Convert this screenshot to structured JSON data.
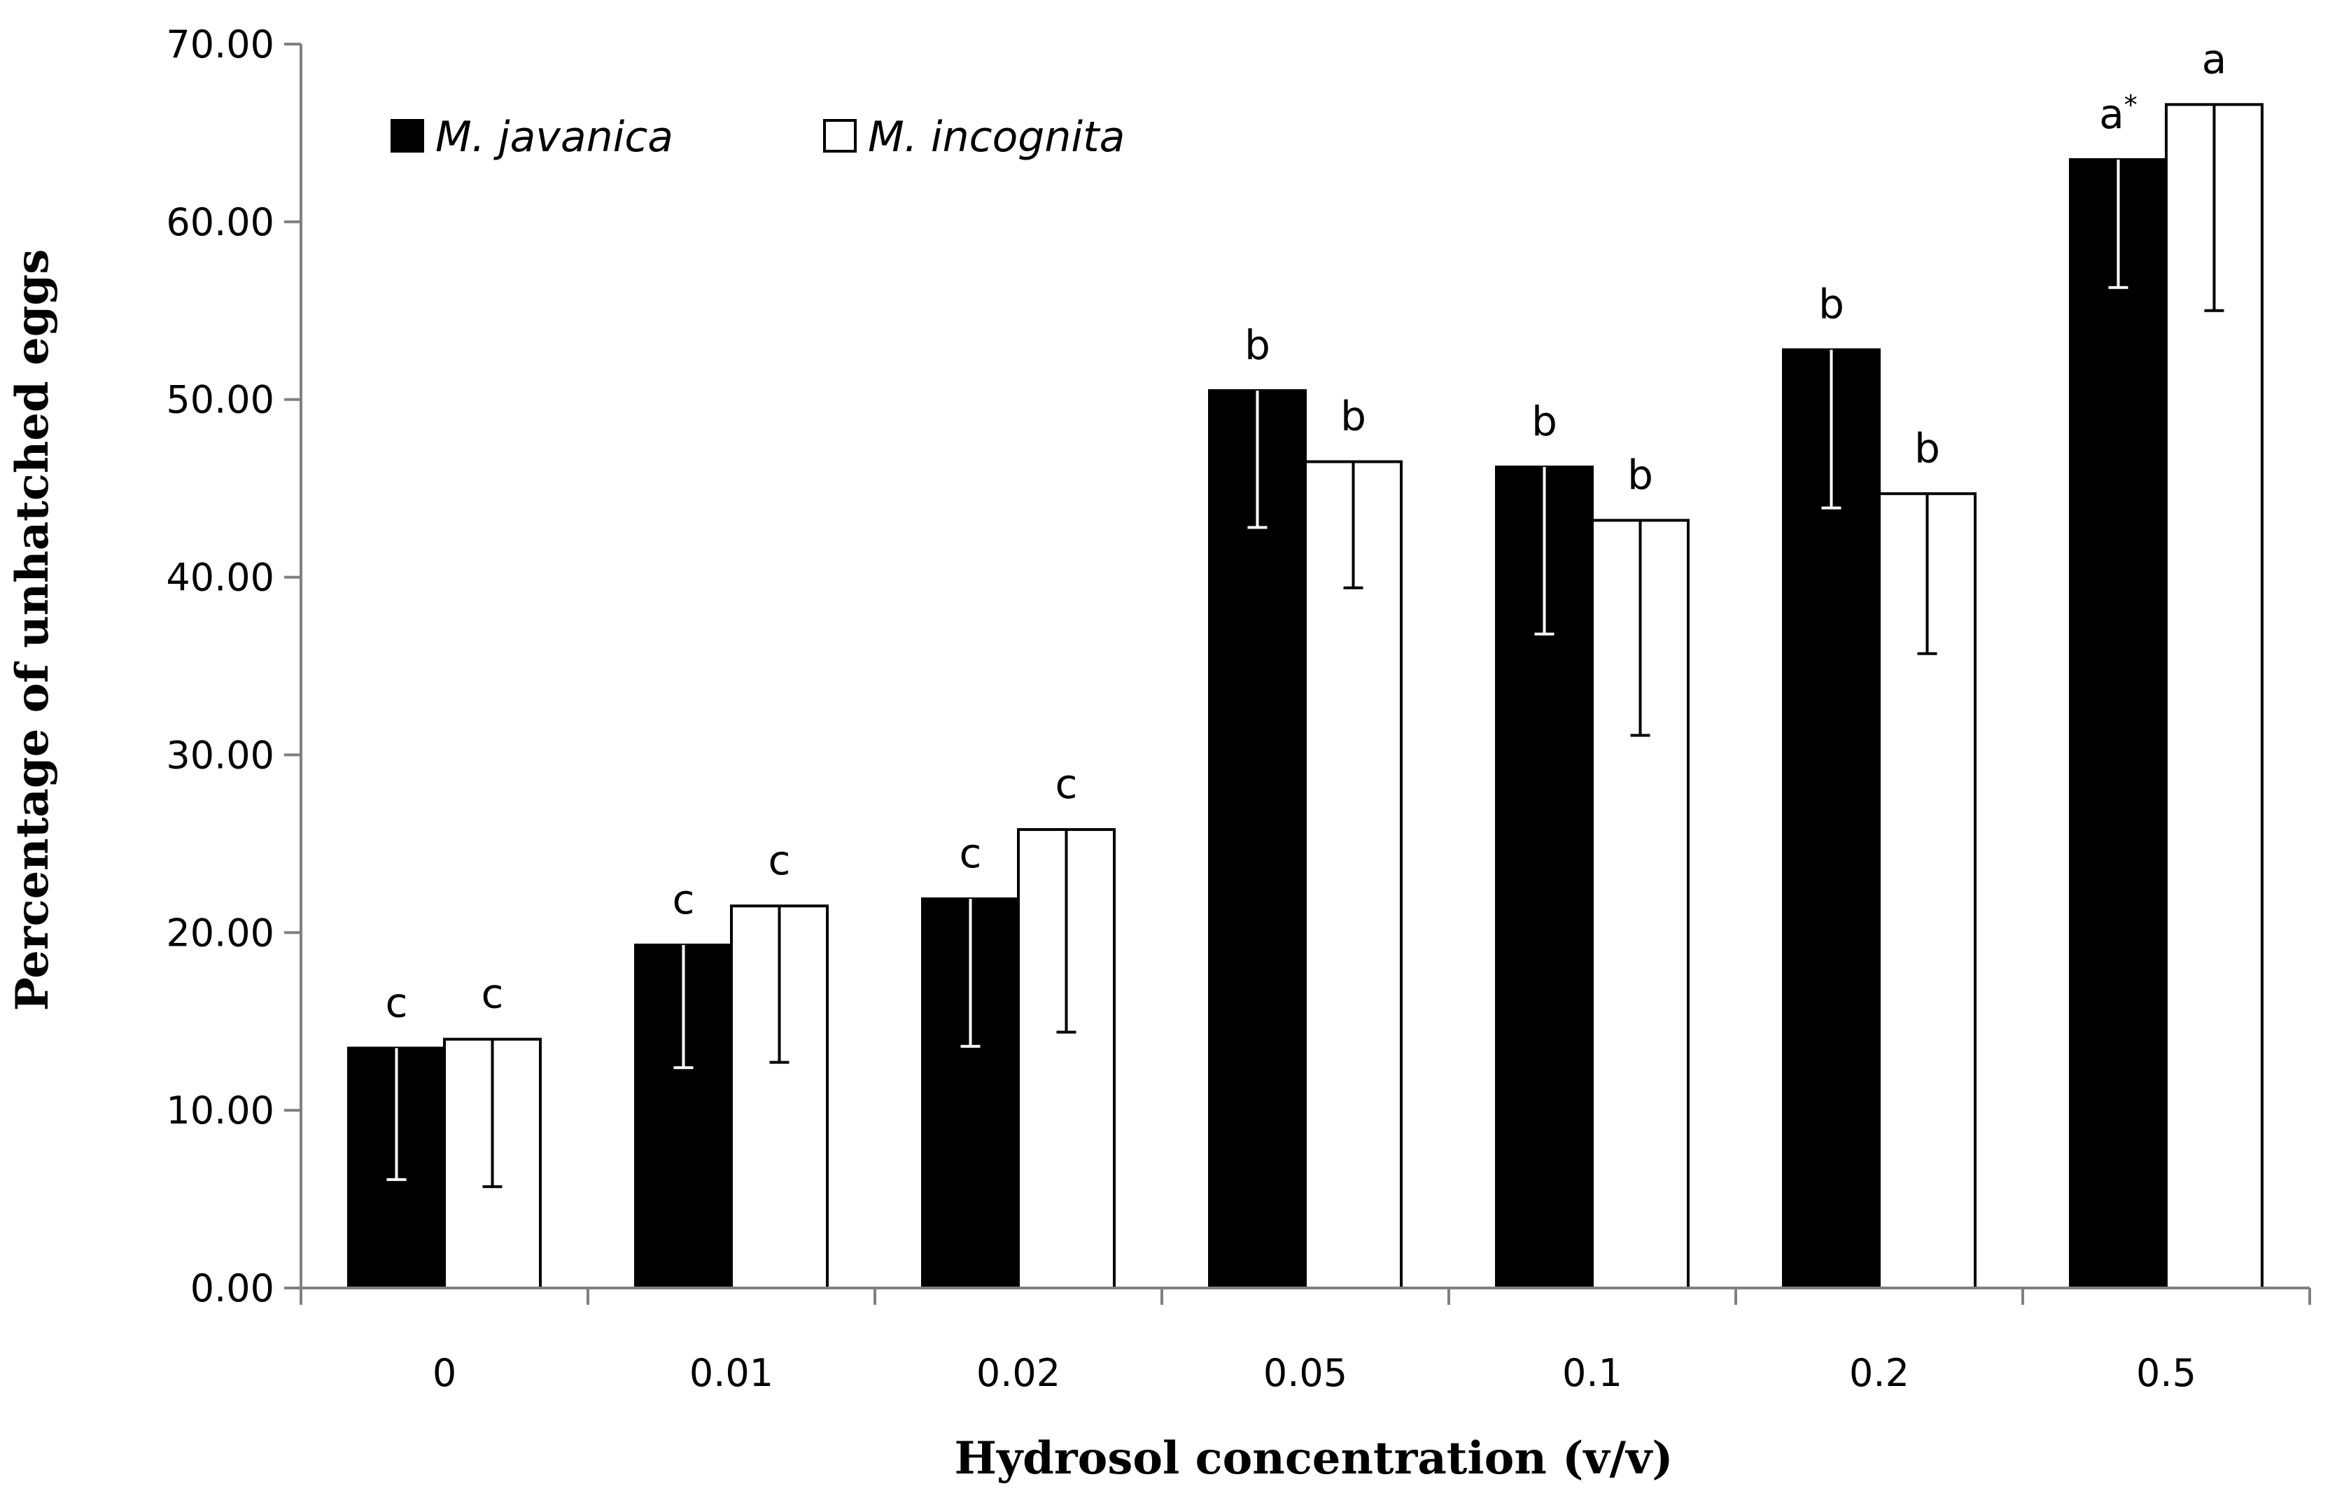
{
  "chart_data": {
    "type": "bar",
    "title": "",
    "xlabel": "Hydrosol concentration (v/v)",
    "ylabel": "Percentage of unhatched eggs",
    "ylim": [
      0,
      70
    ],
    "yticks": [
      "0.00",
      "10.00",
      "20.00",
      "30.00",
      "40.00",
      "50.00",
      "60.00",
      "70.00"
    ],
    "categories": [
      "0",
      "0.01",
      "0.02",
      "0.05",
      "0.1",
      "0.2",
      "0.5"
    ],
    "legend_position": "top-left",
    "series": [
      {
        "name": "M. javanica",
        "color": "#000000",
        "values": [
          13.5,
          19.3,
          21.9,
          50.5,
          46.2,
          52.8,
          63.5
        ],
        "error": [
          7.4,
          6.9,
          8.3,
          7.7,
          9.4,
          8.9,
          7.2
        ],
        "labels": [
          "c",
          "c",
          "c",
          "b",
          "b",
          "b",
          "a*"
        ]
      },
      {
        "name": "M. incognita",
        "color": "#ffffff",
        "values": [
          14.0,
          21.5,
          25.8,
          46.5,
          43.2,
          44.7,
          66.6
        ],
        "error": [
          8.3,
          8.8,
          11.4,
          7.1,
          12.1,
          9.0,
          11.6
        ],
        "labels": [
          "c",
          "c",
          "c",
          "b",
          "b",
          "b",
          "a"
        ]
      }
    ]
  }
}
